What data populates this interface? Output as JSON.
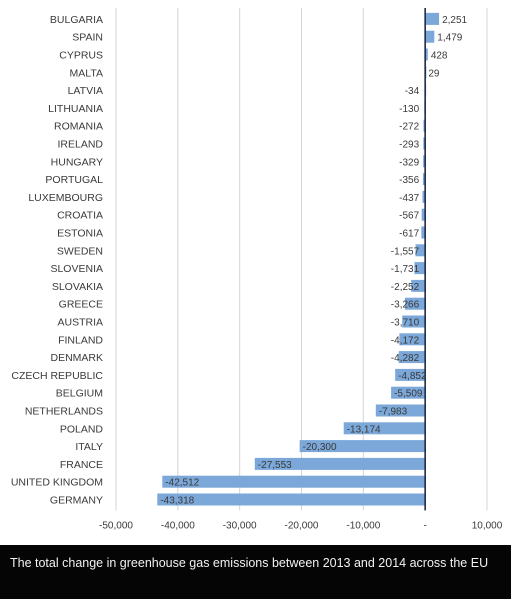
{
  "chart_data": {
    "type": "bar",
    "orientation": "horizontal",
    "categories": [
      "BULGARIA",
      "SPAIN",
      "CYPRUS",
      "MALTA",
      "LATVIA",
      "LITHUANIA",
      "ROMANIA",
      "IRELAND",
      "HUNGARY",
      "PORTUGAL",
      "LUXEMBOURG",
      "CROATIA",
      "ESTONIA",
      "SWEDEN",
      "SLOVENIA",
      "SLOVAKIA",
      "GREECE",
      "AUSTRIA",
      "FINLAND",
      "DENMARK",
      "CZECH REPUBLIC",
      "BELGIUM",
      "NETHERLANDS",
      "POLAND",
      "ITALY",
      "FRANCE",
      "UNITED KINGDOM",
      "GERMANY"
    ],
    "values": [
      2251,
      1479,
      428,
      29,
      -34,
      -130,
      -272,
      -293,
      -329,
      -356,
      -437,
      -567,
      -617,
      -1557,
      -1731,
      -2252,
      -3266,
      -3710,
      -4172,
      -4282,
      -4852,
      -5509,
      -7983,
      -13174,
      -20300,
      -27553,
      -42512,
      -43318
    ],
    "value_labels": [
      "2,251",
      "1,479",
      "428",
      "29",
      "-34",
      "-130",
      "-272",
      "-293",
      "-329",
      "-356",
      "-437",
      "-567",
      "-617",
      "-1,557",
      "-1,731",
      "-2,252",
      "-3,266",
      "-3,710",
      "-4,172",
      "-4,282",
      "-4,852",
      "-5,509",
      "-7,983",
      "-13,174",
      "-20,300",
      "-27,553",
      "-42,512",
      "-43,318"
    ],
    "x_ticks": [
      -50000,
      -40000,
      -30000,
      -20000,
      -10000,
      0,
      10000
    ],
    "x_tick_labels": [
      "-50,000",
      "-40,000",
      "-30,000",
      "-20,000",
      "-10,000",
      "-",
      "10,000"
    ],
    "xlim": [
      -50000,
      10000
    ],
    "grid": "vertical",
    "bar_color": "#7ba7d9",
    "gridline_color": "#d4d4d4",
    "zero_line_color": "#1e2a4a"
  },
  "caption": "The total change in greenhouse gas emissions between 2013 and 2014 across the EU"
}
